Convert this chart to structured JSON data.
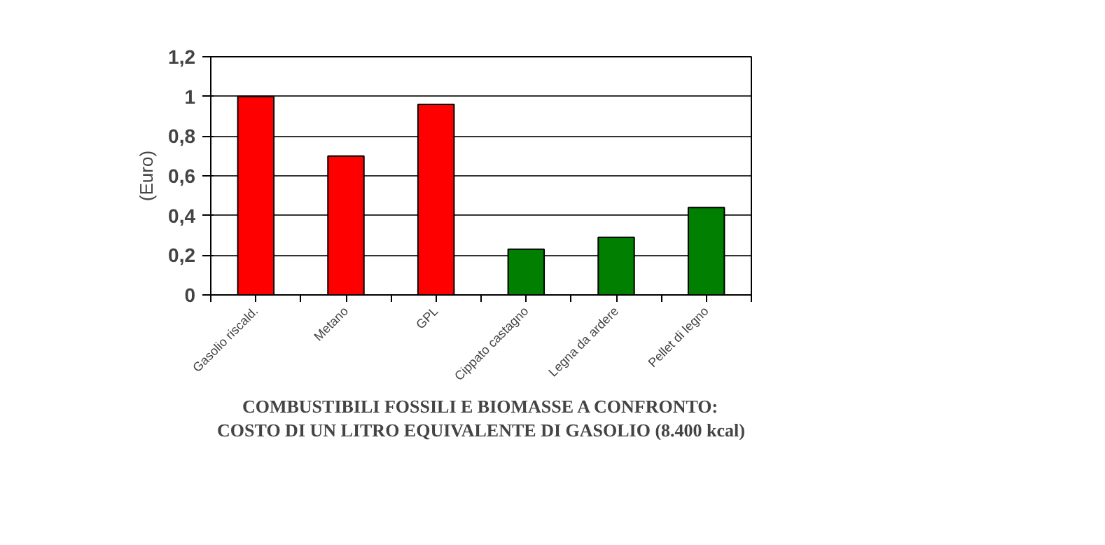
{
  "chart_data": {
    "type": "bar",
    "title": "COMBUSTIBILI FOSSILI E BIOMASSE A CONFRONTO:",
    "subtitle": "COSTO DI UN LITRO EQUIVALENTE DI GASOLIO (8.400 kcal)",
    "ylabel": "(Euro)",
    "categories": [
      "Gasolio riscald.",
      "Metano",
      "GPL",
      "Cippato castagno",
      "Legna da ardere",
      "Pellet di legno"
    ],
    "values": [
      1.0,
      0.7,
      0.96,
      0.23,
      0.29,
      0.44
    ],
    "colors": [
      "#ff0000",
      "#ff0000",
      "#ff0000",
      "#007f00",
      "#007f00",
      "#007f00"
    ],
    "ylim": [
      0,
      1.2
    ],
    "yticks": [
      0,
      {
        "value": 0.2,
        "label": "0,2"
      },
      {
        "value": 0.4,
        "label": "0,4"
      },
      {
        "value": 0.6,
        "label": "0,6"
      },
      {
        "value": 0.8,
        "label": "0,8"
      },
      1,
      {
        "value": 1.2,
        "label": "1,2"
      }
    ],
    "grid": "y"
  }
}
